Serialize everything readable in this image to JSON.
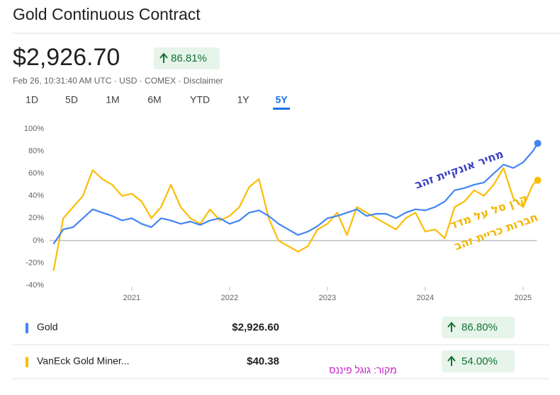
{
  "header": {
    "title": "Gold Continuous Contract",
    "price": "$2,926.70",
    "change": "86.81%",
    "meta": "Feb 26, 10:31:40 AM UTC · USD · COMEX · Disclaimer"
  },
  "tabs": [
    "1D",
    "5D",
    "1M",
    "6M",
    "YTD",
    "1Y",
    "5Y"
  ],
  "selected_tab": 6,
  "chart_data": {
    "type": "line",
    "x": [
      2020.2,
      2020.3,
      2020.4,
      2020.5,
      2020.6,
      2020.7,
      2020.8,
      2020.9,
      2021.0,
      2021.1,
      2021.2,
      2021.3,
      2021.4,
      2021.5,
      2021.6,
      2021.7,
      2021.8,
      2021.9,
      2022.0,
      2022.1,
      2022.2,
      2022.3,
      2022.4,
      2022.5,
      2022.6,
      2022.7,
      2022.8,
      2022.9,
      2023.0,
      2023.1,
      2023.2,
      2023.3,
      2023.4,
      2023.5,
      2023.6,
      2023.7,
      2023.8,
      2023.9,
      2024.0,
      2024.1,
      2024.2,
      2024.3,
      2024.4,
      2024.5,
      2024.6,
      2024.7,
      2024.8,
      2024.9,
      2025.0,
      2025.1,
      2025.15
    ],
    "series": [
      {
        "name": "Gold",
        "color": "#4285f4",
        "values": [
          -3,
          10,
          12,
          20,
          28,
          25,
          22,
          18,
          20,
          15,
          12,
          20,
          18,
          15,
          17,
          14,
          18,
          20,
          15,
          18,
          25,
          27,
          22,
          15,
          10,
          5,
          8,
          13,
          20,
          22,
          25,
          28,
          22,
          24,
          24,
          20,
          25,
          28,
          27,
          30,
          35,
          45,
          47,
          50,
          52,
          60,
          68,
          65,
          70,
          80,
          87
        ]
      },
      {
        "name": "VanEck Gold Miner...",
        "color": "#fbbc04",
        "values": [
          -27,
          20,
          30,
          40,
          63,
          55,
          50,
          40,
          42,
          35,
          20,
          30,
          50,
          30,
          20,
          15,
          28,
          18,
          22,
          30,
          48,
          55,
          20,
          0,
          -5,
          -10,
          -5,
          10,
          15,
          25,
          5,
          30,
          25,
          20,
          15,
          10,
          20,
          25,
          8,
          10,
          2,
          30,
          35,
          45,
          40,
          50,
          65,
          38,
          30,
          50,
          54
        ]
      }
    ],
    "xlim": [
      2020.16,
      2025.2
    ],
    "xticks": [
      2021,
      2022,
      2023,
      2024,
      2025
    ],
    "ylim": [
      -40,
      100
    ],
    "yticks": [
      {
        "value": -40,
        "label": "-40%"
      },
      {
        "value": -20,
        "label": "-20%"
      },
      {
        "value": 0,
        "label": "0%"
      },
      {
        "value": 20,
        "label": "20%"
      },
      {
        "value": 40,
        "label": "40%"
      },
      {
        "value": 60,
        "label": "60%"
      },
      {
        "value": 80,
        "label": "80%"
      },
      {
        "value": 100,
        "label": "100%"
      }
    ],
    "grid": false,
    "annotations": [
      "מחיר אונקיית זהב",
      "קרן סל על מדד",
      "חברות כריית זהב"
    ]
  },
  "comparisons": [
    {
      "price": "$2,926.60",
      "change": "86.80%"
    },
    {
      "price": "$40.38",
      "change": "54.00%"
    }
  ],
  "source": "מקור: גוגל פיננס"
}
